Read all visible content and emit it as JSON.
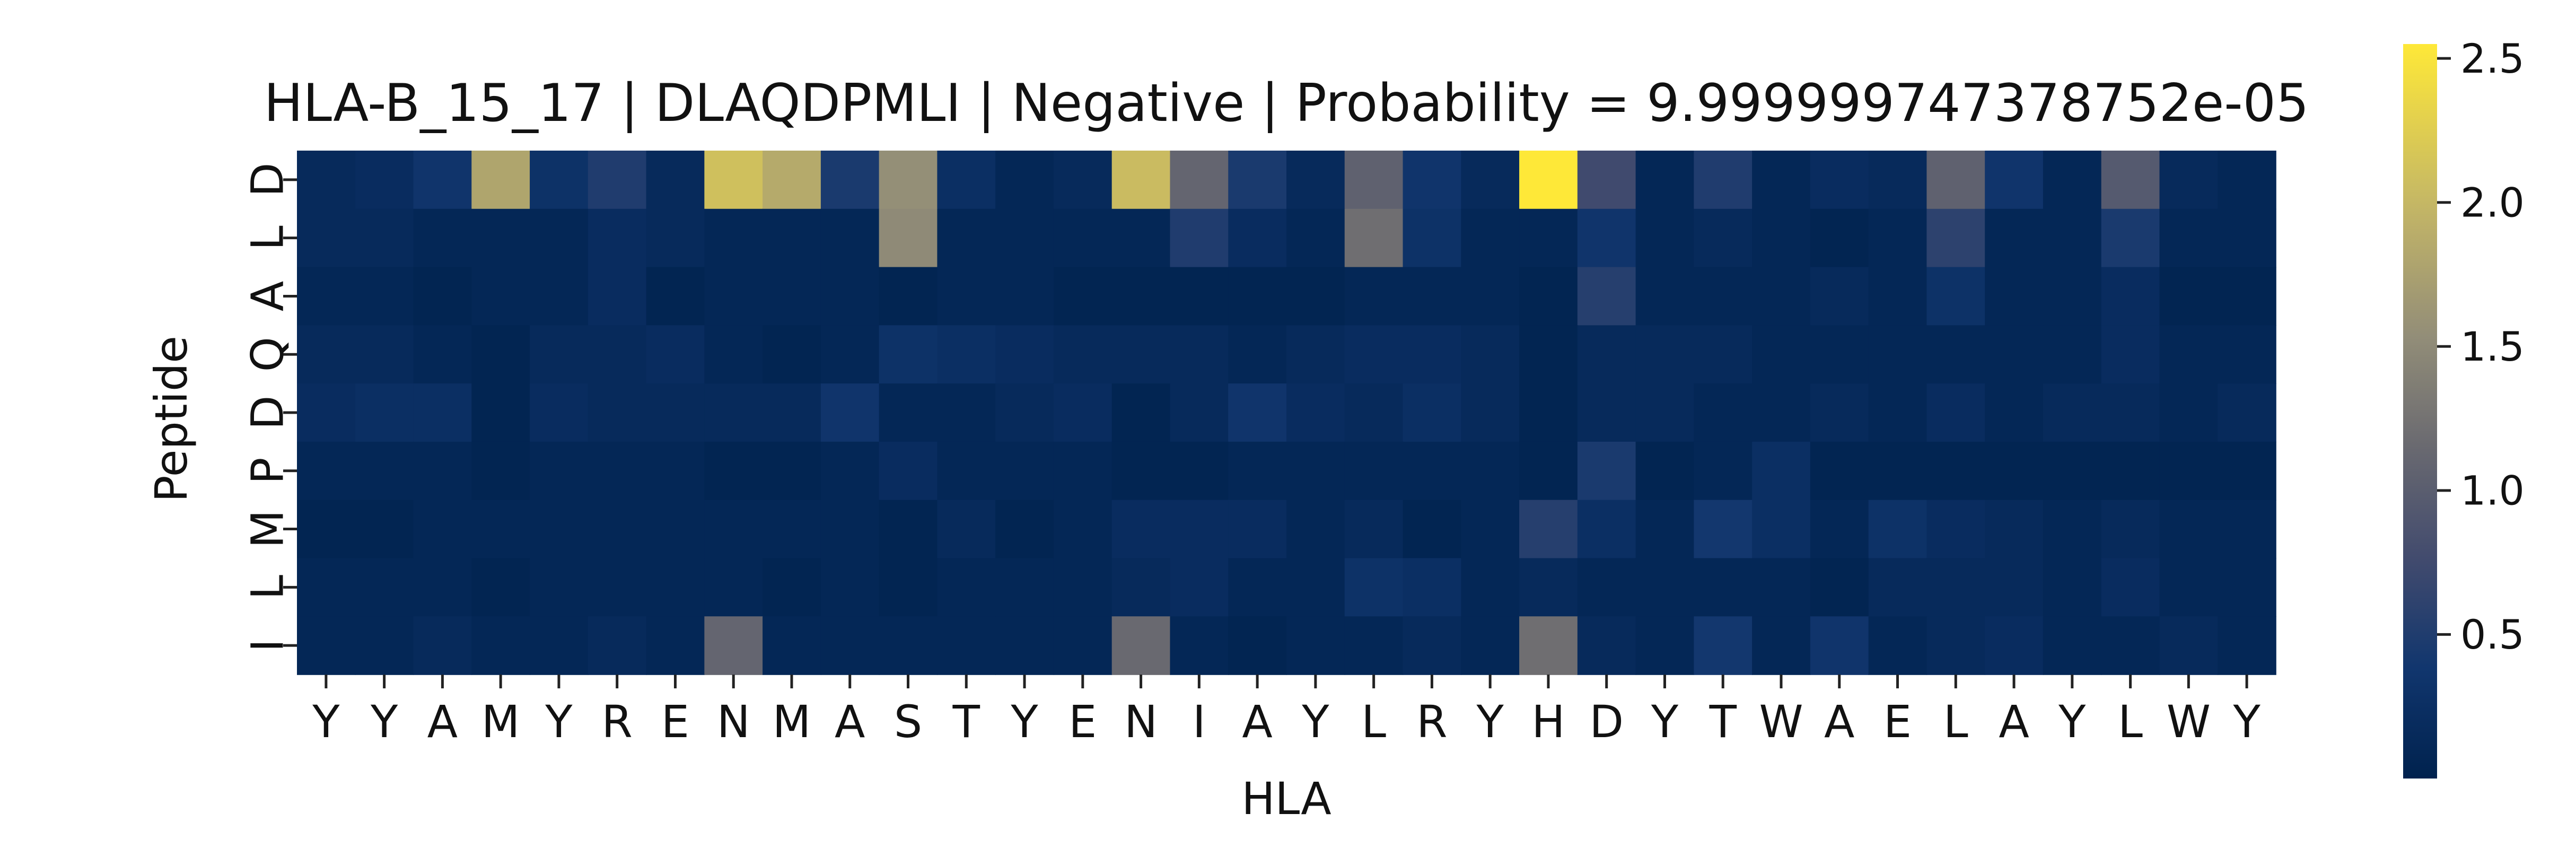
{
  "chart_data": {
    "type": "heatmap",
    "title": "HLA-B_15_17 | DLAQDPMLI | Negative | Probability = 9.999999747378752e-05",
    "xlabel": "HLA",
    "ylabel": "Peptide",
    "x_categories": [
      "Y",
      "Y",
      "A",
      "M",
      "Y",
      "R",
      "E",
      "N",
      "M",
      "A",
      "S",
      "T",
      "Y",
      "E",
      "N",
      "I",
      "A",
      "Y",
      "L",
      "R",
      "Y",
      "H",
      "D",
      "Y",
      "T",
      "W",
      "A",
      "E",
      "L",
      "A",
      "Y",
      "L",
      "W",
      "Y"
    ],
    "y_categories": [
      "D",
      "L",
      "A",
      "Q",
      "D",
      "P",
      "M",
      "L",
      "I"
    ],
    "values": [
      [
        0.15,
        0.2,
        0.35,
        1.8,
        0.3,
        0.5,
        0.15,
        2.1,
        1.85,
        0.45,
        1.55,
        0.25,
        0.1,
        0.15,
        2.05,
        1.1,
        0.45,
        0.15,
        1.05,
        0.35,
        0.15,
        2.55,
        0.75,
        0.1,
        0.5,
        0.1,
        0.2,
        0.15,
        1.05,
        0.35,
        0.1,
        0.95,
        0.15,
        0.1
      ],
      [
        0.15,
        0.15,
        0.1,
        0.1,
        0.1,
        0.2,
        0.15,
        0.1,
        0.1,
        0.1,
        1.5,
        0.1,
        0.1,
        0.1,
        0.1,
        0.5,
        0.2,
        0.1,
        1.2,
        0.3,
        0.1,
        0.1,
        0.35,
        0.1,
        0.15,
        0.1,
        0.05,
        0.1,
        0.6,
        0.1,
        0.1,
        0.45,
        0.1,
        0.1
      ],
      [
        0.1,
        0.1,
        0.05,
        0.1,
        0.1,
        0.2,
        0.05,
        0.1,
        0.1,
        0.1,
        0.05,
        0.1,
        0.1,
        0.05,
        0.05,
        0.05,
        0.05,
        0.05,
        0.1,
        0.1,
        0.1,
        0.05,
        0.55,
        0.1,
        0.1,
        0.1,
        0.15,
        0.1,
        0.3,
        0.1,
        0.1,
        0.2,
        0.05,
        0.05
      ],
      [
        0.15,
        0.15,
        0.1,
        0.05,
        0.15,
        0.15,
        0.2,
        0.1,
        0.05,
        0.1,
        0.3,
        0.25,
        0.2,
        0.15,
        0.15,
        0.15,
        0.1,
        0.15,
        0.2,
        0.2,
        0.15,
        0.05,
        0.15,
        0.15,
        0.15,
        0.1,
        0.1,
        0.1,
        0.1,
        0.1,
        0.1,
        0.2,
        0.1,
        0.1
      ],
      [
        0.2,
        0.25,
        0.25,
        0.05,
        0.2,
        0.15,
        0.15,
        0.15,
        0.15,
        0.35,
        0.1,
        0.1,
        0.15,
        0.2,
        0.05,
        0.15,
        0.35,
        0.2,
        0.15,
        0.25,
        0.15,
        0.05,
        0.15,
        0.15,
        0.1,
        0.1,
        0.15,
        0.1,
        0.2,
        0.1,
        0.15,
        0.15,
        0.1,
        0.15
      ],
      [
        0.1,
        0.1,
        0.1,
        0.05,
        0.1,
        0.1,
        0.1,
        0.05,
        0.05,
        0.1,
        0.2,
        0.1,
        0.1,
        0.1,
        0.05,
        0.05,
        0.1,
        0.1,
        0.1,
        0.1,
        0.1,
        0.05,
        0.45,
        0.05,
        0.1,
        0.25,
        0.05,
        0.05,
        0.05,
        0.05,
        0.05,
        0.05,
        0.05,
        0.05
      ],
      [
        0.05,
        0.05,
        0.1,
        0.1,
        0.1,
        0.1,
        0.1,
        0.1,
        0.1,
        0.1,
        0.05,
        0.15,
        0.05,
        0.1,
        0.2,
        0.2,
        0.2,
        0.1,
        0.15,
        0.05,
        0.1,
        0.55,
        0.25,
        0.1,
        0.4,
        0.25,
        0.1,
        0.3,
        0.2,
        0.15,
        0.1,
        0.15,
        0.1,
        0.1
      ],
      [
        0.1,
        0.1,
        0.1,
        0.05,
        0.1,
        0.1,
        0.1,
        0.1,
        0.05,
        0.1,
        0.05,
        0.1,
        0.1,
        0.1,
        0.15,
        0.2,
        0.1,
        0.1,
        0.3,
        0.25,
        0.1,
        0.15,
        0.1,
        0.1,
        0.1,
        0.1,
        0.05,
        0.15,
        0.15,
        0.15,
        0.1,
        0.2,
        0.1,
        0.1
      ],
      [
        0.1,
        0.1,
        0.15,
        0.1,
        0.1,
        0.15,
        0.1,
        1.1,
        0.1,
        0.1,
        0.1,
        0.1,
        0.1,
        0.1,
        1.15,
        0.1,
        0.05,
        0.1,
        0.1,
        0.15,
        0.1,
        1.2,
        0.15,
        0.1,
        0.4,
        0.1,
        0.35,
        0.1,
        0.15,
        0.2,
        0.1,
        0.1,
        0.15,
        0.1
      ]
    ],
    "colormap": "cividis",
    "colorbar": {
      "range": [
        0.0,
        2.55
      ],
      "ticks": [
        0.5,
        1.0,
        1.5,
        2.0,
        2.5
      ]
    },
    "colors": {
      "low": "#00224e",
      "mid": "#7c7b78",
      "high": "#fee838"
    }
  }
}
